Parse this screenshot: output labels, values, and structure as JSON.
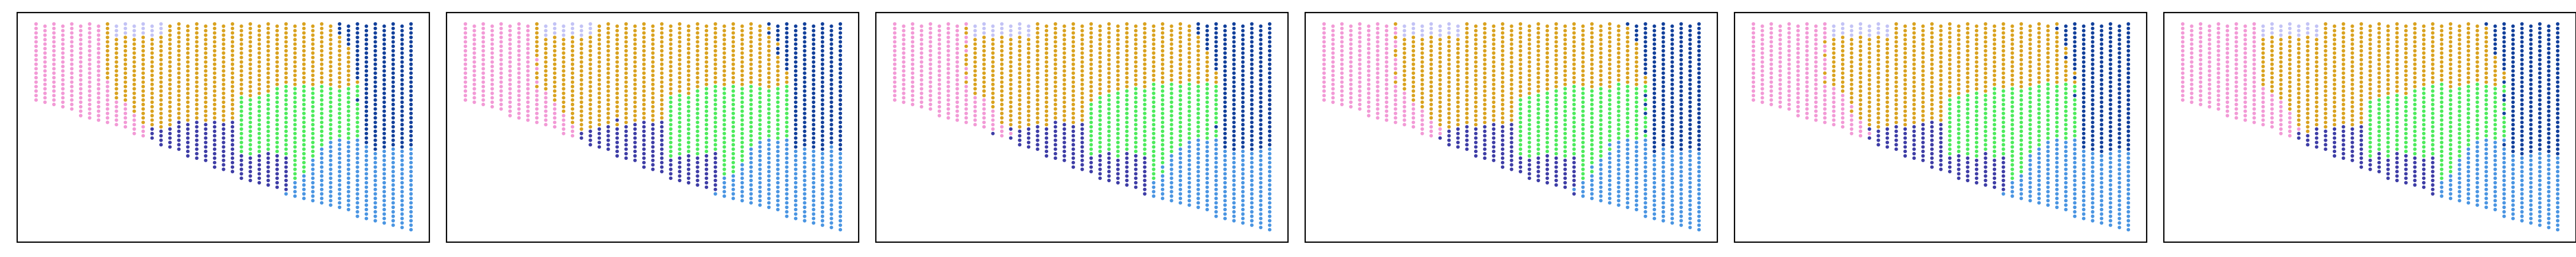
{
  "figure": {
    "background": "#ffffff",
    "frame_color": "#000000"
  },
  "chart_data": [
    {
      "type": "scatter",
      "grid": false,
      "axes_visible": false,
      "point_color_map": {
        "pink": "#F29AD6",
        "lavender": "#C3C3F5",
        "gold": "#D9A21F",
        "green": "#4DEB5C",
        "indigo": "#3E3DA6",
        "navy": "#12409B",
        "sky": "#4A95E2"
      },
      "regions_described": [
        "pink",
        "lavender",
        "gold",
        "green",
        "indigo",
        "navy",
        "sky"
      ],
      "variant": 0
    },
    {
      "type": "scatter",
      "grid": false,
      "axes_visible": false,
      "point_color_map": {
        "pink": "#F29AD6",
        "lavender": "#C3C3F5",
        "gold": "#D9A21F",
        "green": "#4DEB5C",
        "indigo": "#3E3DA6",
        "navy": "#12409B",
        "sky": "#4A95E2"
      },
      "regions_described": [
        "pink",
        "lavender",
        "gold",
        "green",
        "indigo",
        "navy",
        "sky"
      ],
      "variant": 1
    },
    {
      "type": "scatter",
      "grid": false,
      "axes_visible": false,
      "point_color_map": {
        "pink": "#F29AD6",
        "lavender": "#C3C3F5",
        "gold": "#D9A21F",
        "green": "#4DEB5C",
        "indigo": "#3E3DA6",
        "navy": "#12409B",
        "sky": "#4A95E2"
      },
      "regions_described": [
        "pink",
        "lavender",
        "gold",
        "green",
        "indigo",
        "navy",
        "sky"
      ],
      "variant": 2
    },
    {
      "type": "scatter",
      "grid": false,
      "axes_visible": false,
      "point_color_map": {
        "pink": "#F29AD6",
        "lavender": "#C3C3F5",
        "gold": "#D9A21F",
        "green": "#4DEB5C",
        "indigo": "#3E3DA6",
        "navy": "#12409B",
        "sky": "#4A95E2"
      },
      "regions_described": [
        "pink",
        "lavender",
        "gold",
        "green",
        "indigo",
        "navy",
        "sky"
      ],
      "variant": 3
    },
    {
      "type": "scatter",
      "grid": false,
      "axes_visible": false,
      "point_color_map": {
        "pink": "#F29AD6",
        "lavender": "#C3C3F5",
        "gold": "#D9A21F",
        "green": "#4DEB5C",
        "indigo": "#3E3DA6",
        "navy": "#12409B",
        "sky": "#4A95E2"
      },
      "regions_described": [
        "pink",
        "lavender",
        "gold",
        "green",
        "indigo",
        "navy",
        "sky"
      ],
      "variant": 4
    },
    {
      "type": "scatter",
      "grid": false,
      "axes_visible": false,
      "point_color_map": {
        "pink": "#F29AD6",
        "lavender": "#C3C3F5",
        "gold": "#D9A21F",
        "green": "#4DEB5C",
        "indigo": "#3E3DA6",
        "navy": "#12409B",
        "sky": "#4A95E2"
      },
      "regions_described": [
        "pink",
        "lavender",
        "gold",
        "green",
        "indigo",
        "navy",
        "sky"
      ],
      "variant": 5
    }
  ]
}
